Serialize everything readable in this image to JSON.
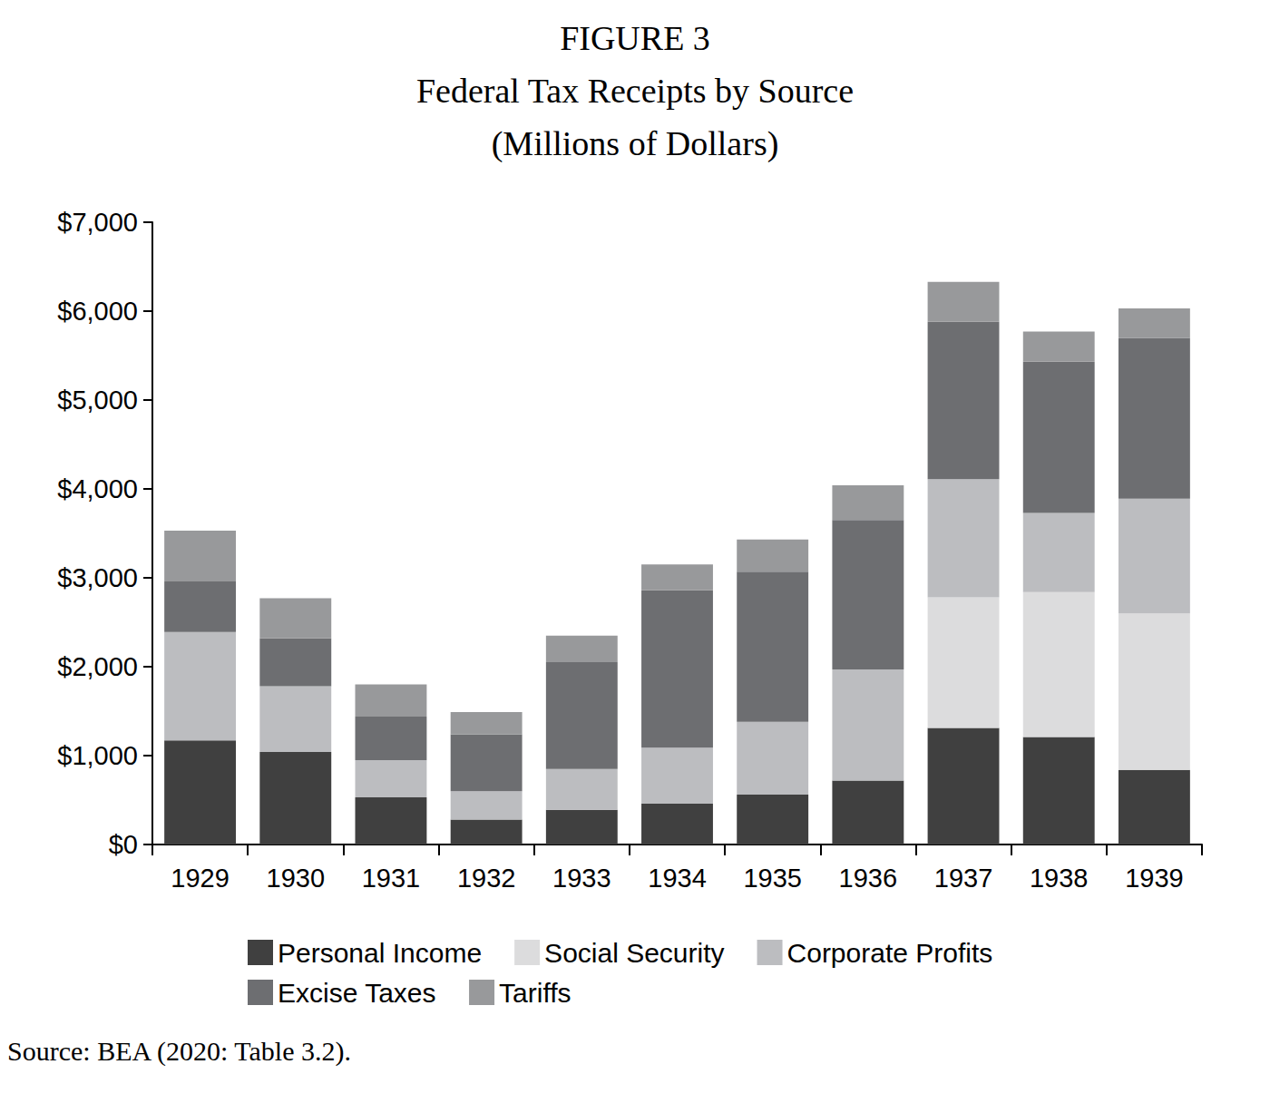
{
  "chart_data": {
    "type": "bar",
    "title": "FIGURE 3",
    "subtitle": "Federal Tax Receipts by Source",
    "units_title": "(Millions of Dollars)",
    "source": "Source: BEA (2020: Table 3.2).",
    "categories": [
      "1929",
      "1930",
      "1931",
      "1932",
      "1933",
      "1934",
      "1935",
      "1936",
      "1937",
      "1938",
      "1939"
    ],
    "series": [
      {
        "name": "Personal Income",
        "color": "#404040",
        "values": [
          1170,
          1040,
          530,
          280,
          390,
          460,
          560,
          720,
          1310,
          1210,
          840
        ]
      },
      {
        "name": "Social Security",
        "color": "#dcdcdd",
        "values": [
          0,
          0,
          0,
          0,
          0,
          0,
          0,
          0,
          1470,
          1630,
          1760
        ]
      },
      {
        "name": "Corporate Profits",
        "color": "#bcbdc0",
        "values": [
          1220,
          740,
          420,
          320,
          460,
          630,
          820,
          1250,
          1330,
          890,
          1290
        ]
      },
      {
        "name": "Excise Taxes",
        "color": "#6d6e71",
        "values": [
          570,
          540,
          490,
          640,
          1200,
          1770,
          1690,
          1680,
          1770,
          1700,
          1810
        ]
      },
      {
        "name": "Tariffs",
        "color": "#98999b",
        "values": [
          570,
          450,
          360,
          250,
          300,
          290,
          360,
          390,
          450,
          340,
          330
        ]
      }
    ],
    "ylim": [
      0,
      7000
    ],
    "yticks": [
      {
        "value": 0,
        "label": "$0"
      },
      {
        "value": 1000,
        "label": "$1,000"
      },
      {
        "value": 2000,
        "label": "$2,000"
      },
      {
        "value": 3000,
        "label": "$3,000"
      },
      {
        "value": 4000,
        "label": "$4,000"
      },
      {
        "value": 5000,
        "label": "$5,000"
      },
      {
        "value": 6000,
        "label": "$6,000"
      },
      {
        "value": 7000,
        "label": "$7,000"
      }
    ],
    "stacked": true,
    "grid": false,
    "legend": "bottom",
    "data_labels": false
  }
}
